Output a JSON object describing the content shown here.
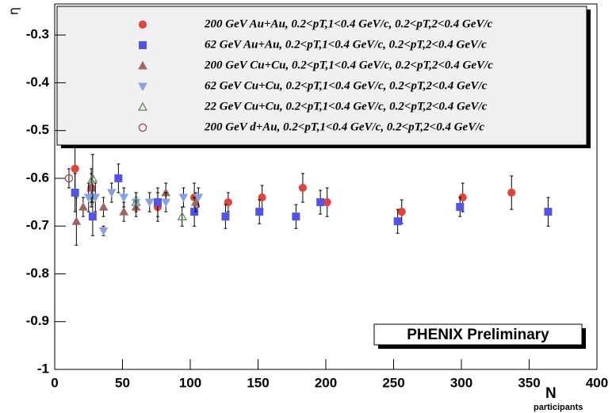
{
  "chart_data": {
    "type": "scatter",
    "y_label": "η",
    "x_label": "N",
    "x_label_subscript": "participants",
    "annotation": "PHENIX Preliminary",
    "xlim": [
      0,
      400
    ],
    "ylim": [
      -1,
      -0.235
    ],
    "xticks": [
      0,
      50,
      100,
      150,
      200,
      250,
      300,
      350,
      400
    ],
    "yticks": [
      -1,
      -0.9,
      -0.8,
      -0.7,
      -0.6,
      -0.5,
      -0.4,
      -0.3
    ],
    "grid": false,
    "series": [
      {
        "name": "200 GeV Au+Au, 0.2<pT,1<0.4 GeV/c, 0.2<pT,2<0.4 GeV/c",
        "color": "#e0443c",
        "marker": "circle",
        "filled": true,
        "x": [
          15,
          27,
          76,
          103,
          128,
          153,
          183,
          201,
          256,
          301,
          337
        ],
        "values": [
          -0.58,
          -0.62,
          -0.66,
          -0.64,
          -0.65,
          -0.64,
          -0.62,
          -0.65,
          -0.67,
          -0.64,
          -0.63
        ],
        "errors": [
          0.045,
          0.03,
          0.03,
          0.03,
          0.02,
          0.025,
          0.03,
          0.03,
          0.025,
          0.03,
          0.035
        ]
      },
      {
        "name": "62 GeV Au+Au, 0.2<pT,1<0.4 GeV/c, 0.2<pT,2<0.4 GeV/c",
        "color": "#5454e4",
        "marker": "square",
        "filled": true,
        "x": [
          15,
          28,
          47,
          76,
          103,
          126,
          151,
          178,
          196,
          253,
          299,
          364
        ],
        "values": [
          -0.63,
          -0.68,
          -0.6,
          -0.65,
          -0.67,
          -0.68,
          -0.67,
          -0.68,
          -0.65,
          -0.69,
          -0.66,
          -0.67
        ],
        "errors": [
          0.04,
          0.04,
          0.03,
          0.03,
          0.03,
          0.025,
          0.025,
          0.025,
          0.025,
          0.025,
          0.02,
          0.03
        ]
      },
      {
        "name": "200 GeV Cu+Cu, 0.2<pT,1<0.4 GeV/c, 0.2<pT,2<0.4 GeV/c",
        "color": "#a06464",
        "marker": "triangle-up",
        "filled": true,
        "x": [
          16,
          21,
          27,
          36,
          51,
          60,
          82,
          104
        ],
        "values": [
          -0.69,
          -0.66,
          -0.62,
          -0.66,
          -0.67,
          -0.66,
          -0.63,
          -0.65
        ],
        "errors": [
          0.05,
          0.02,
          0.04,
          0.02,
          0.02,
          0.02,
          0.02,
          0.02
        ]
      },
      {
        "name": "62 GeV Cu+Cu, 0.2<pT,1<0.4 GeV/c, 0.2<pT,2<0.4 GeV/c",
        "color": "#82a2e2",
        "marker": "triangle-down",
        "filled": true,
        "x": [
          25,
          30,
          36,
          42,
          51,
          60,
          70,
          82,
          95,
          106
        ],
        "values": [
          -0.64,
          -0.64,
          -0.71,
          -0.63,
          -0.64,
          -0.65,
          -0.65,
          -0.65,
          -0.64,
          -0.64
        ],
        "errors": [
          0.03,
          0.03,
          0.01,
          0.02,
          0.02,
          0.02,
          0.02,
          0.02,
          0.02,
          0.02
        ]
      },
      {
        "name": "22 GeV Cu+Cu, 0.2<pT,1<0.4 GeV/c, 0.2<pT,2<0.4 GeV/c",
        "color": "#5a8c5a",
        "marker": "triangle-up",
        "filled": false,
        "x": [
          28,
          60,
          94
        ],
        "values": [
          -0.6,
          -0.65,
          -0.68
        ],
        "errors": [
          0.05,
          0.02,
          0.02
        ]
      },
      {
        "name": "200 GeV d+Au, 0.2<pT,1<0.4 GeV/c, 0.2<pT,2<0.4 GeV/c",
        "color": "#a04646",
        "marker": "circle",
        "filled": false,
        "x": [
          10.5
        ],
        "values": [
          -0.6
        ],
        "errors": [
          0.02
        ]
      }
    ]
  }
}
